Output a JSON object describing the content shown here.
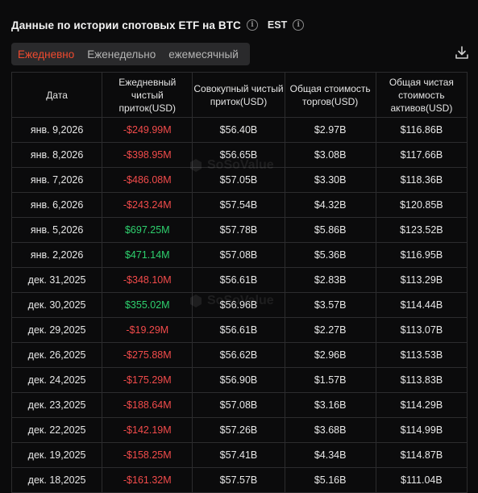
{
  "header": {
    "title": "Данные по истории спотовых ETF на BTC",
    "timezone": "EST"
  },
  "tabs": [
    {
      "label": "Ежедневно",
      "active": true
    },
    {
      "label": "Еженедельно",
      "active": false
    },
    {
      "label": "ежемесячный",
      "active": false
    }
  ],
  "table": {
    "columns": [
      "Дата",
      "Ежедневный чистый приток(USD)",
      "Совокупный чистый приток(USD)",
      "Общая стоимость торгов(USD)",
      "Общая чистая стоимость активов(USD)"
    ],
    "rows": [
      {
        "date": "янв. 9,2026",
        "daily": "-$249.99M",
        "sign": "neg",
        "cumulative": "$56.40B",
        "traded": "$2.97B",
        "assets": "$116.86B"
      },
      {
        "date": "янв. 8,2026",
        "daily": "-$398.95M",
        "sign": "neg",
        "cumulative": "$56.65B",
        "traded": "$3.08B",
        "assets": "$117.66B"
      },
      {
        "date": "янв. 7,2026",
        "daily": "-$486.08M",
        "sign": "neg",
        "cumulative": "$57.05B",
        "traded": "$3.30B",
        "assets": "$118.36B"
      },
      {
        "date": "янв. 6,2026",
        "daily": "-$243.24M",
        "sign": "neg",
        "cumulative": "$57.54B",
        "traded": "$4.32B",
        "assets": "$120.85B"
      },
      {
        "date": "янв. 5,2026",
        "daily": "$697.25M",
        "sign": "pos",
        "cumulative": "$57.78B",
        "traded": "$5.86B",
        "assets": "$123.52B"
      },
      {
        "date": "янв. 2,2026",
        "daily": "$471.14M",
        "sign": "pos",
        "cumulative": "$57.08B",
        "traded": "$5.36B",
        "assets": "$116.95B"
      },
      {
        "date": "дек. 31,2025",
        "daily": "-$348.10M",
        "sign": "neg",
        "cumulative": "$56.61B",
        "traded": "$2.83B",
        "assets": "$113.29B"
      },
      {
        "date": "дек. 30,2025",
        "daily": "$355.02M",
        "sign": "pos",
        "cumulative": "$56.96B",
        "traded": "$3.57B",
        "assets": "$114.44B"
      },
      {
        "date": "дек. 29,2025",
        "daily": "-$19.29M",
        "sign": "neg",
        "cumulative": "$56.61B",
        "traded": "$2.27B",
        "assets": "$113.07B"
      },
      {
        "date": "дек. 26,2025",
        "daily": "-$275.88M",
        "sign": "neg",
        "cumulative": "$56.62B",
        "traded": "$2.96B",
        "assets": "$113.53B"
      },
      {
        "date": "дек. 24,2025",
        "daily": "-$175.29M",
        "sign": "neg",
        "cumulative": "$56.90B",
        "traded": "$1.57B",
        "assets": "$113.83B"
      },
      {
        "date": "дек. 23,2025",
        "daily": "-$188.64M",
        "sign": "neg",
        "cumulative": "$57.08B",
        "traded": "$3.16B",
        "assets": "$114.29B"
      },
      {
        "date": "дек. 22,2025",
        "daily": "-$142.19M",
        "sign": "neg",
        "cumulative": "$57.26B",
        "traded": "$3.68B",
        "assets": "$114.99B"
      },
      {
        "date": "дек. 19,2025",
        "daily": "-$158.25M",
        "sign": "neg",
        "cumulative": "$57.41B",
        "traded": "$4.34B",
        "assets": "$114.87B"
      },
      {
        "date": "дек. 18,2025",
        "daily": "-$161.32M",
        "sign": "neg",
        "cumulative": "$57.57B",
        "traded": "$5.16B",
        "assets": "$111.04B"
      }
    ]
  },
  "watermark": "SoSoValue",
  "icons": {
    "info": "info-icon",
    "download": "download-icon"
  },
  "colors": {
    "accent": "#f04a2f",
    "negative": "#f24b4b",
    "positive": "#2ed06e",
    "background": "#0b0b0c"
  }
}
